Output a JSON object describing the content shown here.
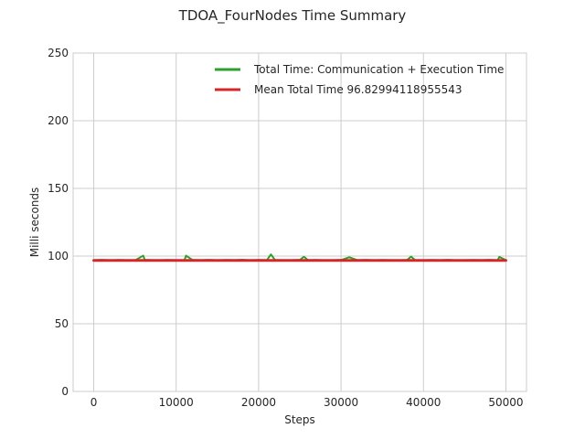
{
  "chart_data": {
    "type": "line",
    "title": "TDOA_FourNodes Time Summary",
    "xlabel": "Steps",
    "ylabel": "Milli seconds",
    "xlim": [
      -2500,
      52500
    ],
    "ylim": [
      0,
      250
    ],
    "xticks": [
      0,
      10000,
      20000,
      30000,
      40000,
      50000
    ],
    "xtick_labels": [
      "0",
      "10000",
      "20000",
      "30000",
      "40000",
      "50000"
    ],
    "yticks": [
      0,
      50,
      100,
      150,
      200,
      250
    ],
    "ytick_labels": [
      "0",
      "50",
      "100",
      "150",
      "200",
      "250"
    ],
    "grid": true,
    "legend_position": "top-right",
    "series": [
      {
        "name": "Total Time: Communication + Execution Time",
        "color": "#2ca02c",
        "x": [
          0,
          1000,
          2000,
          3000,
          4000,
          5000,
          6000,
          6200,
          7000,
          8000,
          9000,
          10000,
          11000,
          11200,
          12000,
          13000,
          14000,
          15000,
          16000,
          17000,
          18000,
          19000,
          20000,
          21000,
          21500,
          22000,
          23000,
          24000,
          25000,
          25500,
          26000,
          27000,
          28000,
          29000,
          30000,
          31000,
          32000,
          33000,
          34000,
          35000,
          36000,
          37000,
          38000,
          38500,
          39000,
          40000,
          41000,
          42000,
          43000,
          44000,
          45000,
          46000,
          47000,
          48000,
          49000,
          49200,
          50000
        ],
        "values": [
          97,
          97.2,
          96.9,
          97.1,
          97,
          96.8,
          100.3,
          97.2,
          97,
          96.9,
          97.1,
          97,
          96.9,
          100.3,
          97.1,
          97,
          97.2,
          96.9,
          97.1,
          97,
          97.3,
          96.9,
          97.1,
          97,
          101.2,
          97.1,
          96.9,
          97,
          97.2,
          99.5,
          97,
          97.1,
          96.9,
          97,
          97.1,
          99.1,
          97,
          97.2,
          96.9,
          97.1,
          97,
          96.9,
          97.1,
          99.6,
          97,
          96.9,
          97.1,
          97,
          97.2,
          96.9,
          97,
          97.1,
          97,
          97.2,
          96.9,
          99.4,
          97
        ]
      },
      {
        "name": "Mean Total Time 96.82994118955543",
        "color": "#d62728",
        "x": [
          0,
          50000
        ],
        "values": [
          96.82994118955543,
          96.82994118955543
        ]
      }
    ]
  }
}
